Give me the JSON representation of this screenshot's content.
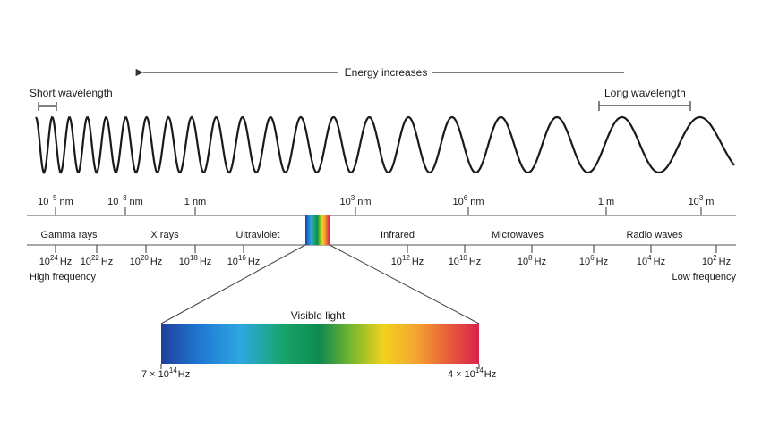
{
  "energy_label": "Energy increases",
  "short_wavelength_label": "Short wavelength",
  "long_wavelength_label": "Long wavelength",
  "wavelength_ticks": [
    {
      "base": "10",
      "exp": "−5",
      "unit": "nm"
    },
    {
      "base": "10",
      "exp": "−3",
      "unit": "nm"
    },
    {
      "base": "",
      "exp": "",
      "unit": "1 nm"
    },
    {
      "base": "10",
      "exp": "3",
      "unit": "nm"
    },
    {
      "base": "10",
      "exp": "6",
      "unit": "nm"
    },
    {
      "base": "",
      "exp": "",
      "unit": "1 m"
    },
    {
      "base": "10",
      "exp": "3",
      "unit": "m"
    }
  ],
  "regions": [
    "Gamma rays",
    "X rays",
    "Ultraviolet",
    "Infrared",
    "Microwaves",
    "Radio waves"
  ],
  "frequency_ticks": [
    {
      "base": "10",
      "exp": "24",
      "unit": "Hz"
    },
    {
      "base": "10",
      "exp": "22",
      "unit": "Hz"
    },
    {
      "base": "10",
      "exp": "20",
      "unit": "Hz"
    },
    {
      "base": "10",
      "exp": "18",
      "unit": "Hz"
    },
    {
      "base": "10",
      "exp": "16",
      "unit": "Hz"
    },
    {
      "base": "10",
      "exp": "12",
      "unit": "Hz"
    },
    {
      "base": "10",
      "exp": "10",
      "unit": "Hz"
    },
    {
      "base": "10",
      "exp": "8",
      "unit": "Hz"
    },
    {
      "base": "10",
      "exp": "6",
      "unit": "Hz"
    },
    {
      "base": "10",
      "exp": "4",
      "unit": "Hz"
    },
    {
      "base": "10",
      "exp": "2",
      "unit": "Hz"
    }
  ],
  "high_frequency_label": "High frequency",
  "low_frequency_label": "Low frequency",
  "visible_light_label": "Visible light",
  "visible_left": {
    "prefix": "7 × 10",
    "exp": "14",
    "unit": "Hz"
  },
  "visible_right": {
    "prefix": "4 × 10",
    "exp": "14",
    "unit": "Hz"
  },
  "colors": {
    "axis": "#8c8c8c",
    "spectrum": [
      "#1f3f9b",
      "#1f78d1",
      "#2ea7e0",
      "#17a56b",
      "#0e8a4f",
      "#79b82e",
      "#f2d21c",
      "#f3a531",
      "#e8603a",
      "#d8224b"
    ]
  }
}
